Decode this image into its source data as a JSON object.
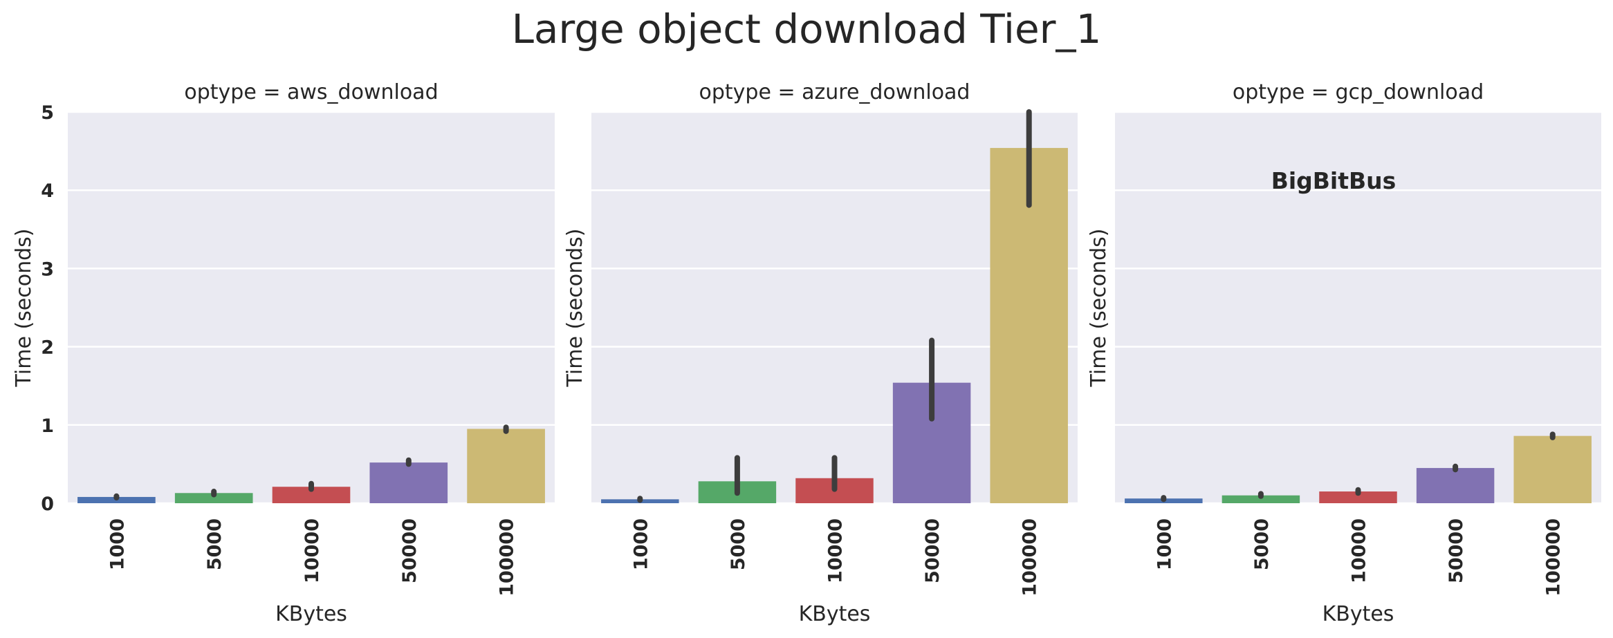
{
  "title": "Large object download Tier_1",
  "watermark": "BigBitBus",
  "colors": [
    "#4c72b0",
    "#55a868",
    "#c44e52",
    "#8172b2",
    "#ccb974"
  ],
  "chart_data": [
    {
      "type": "bar",
      "title": "optype = aws_download",
      "xlabel": "KBytes",
      "ylabel": "Time (seconds)",
      "ylim": [
        0,
        5
      ],
      "yticks": [
        "0",
        "1",
        "2",
        "3",
        "4",
        "5"
      ],
      "grid": true,
      "categories": [
        "1000",
        "5000",
        "10000",
        "50000",
        "100000"
      ],
      "values": [
        0.08,
        0.13,
        0.21,
        0.52,
        0.95
      ],
      "error_low": [
        0.07,
        0.11,
        0.18,
        0.5,
        0.92
      ],
      "error_high": [
        0.09,
        0.15,
        0.25,
        0.55,
        0.97
      ]
    },
    {
      "type": "bar",
      "title": "optype = azure_download",
      "xlabel": "KBytes",
      "ylabel": "Time (seconds)",
      "ylim": [
        0,
        5
      ],
      "yticks": [],
      "grid": true,
      "categories": [
        "1000",
        "5000",
        "10000",
        "50000",
        "100000"
      ],
      "values": [
        0.05,
        0.28,
        0.32,
        1.54,
        4.54
      ],
      "error_low": [
        0.04,
        0.13,
        0.18,
        1.08,
        3.81
      ],
      "error_high": [
        0.06,
        0.58,
        0.58,
        2.08,
        5.1
      ]
    },
    {
      "type": "bar",
      "title": "optype = gcp_download",
      "xlabel": "KBytes",
      "ylabel": "Time (seconds)",
      "ylim": [
        0,
        5
      ],
      "yticks": [],
      "grid": true,
      "categories": [
        "1000",
        "5000",
        "10000",
        "50000",
        "100000"
      ],
      "values": [
        0.06,
        0.1,
        0.15,
        0.45,
        0.86
      ],
      "error_low": [
        0.05,
        0.09,
        0.13,
        0.43,
        0.84
      ],
      "error_high": [
        0.07,
        0.12,
        0.17,
        0.47,
        0.88
      ]
    }
  ]
}
